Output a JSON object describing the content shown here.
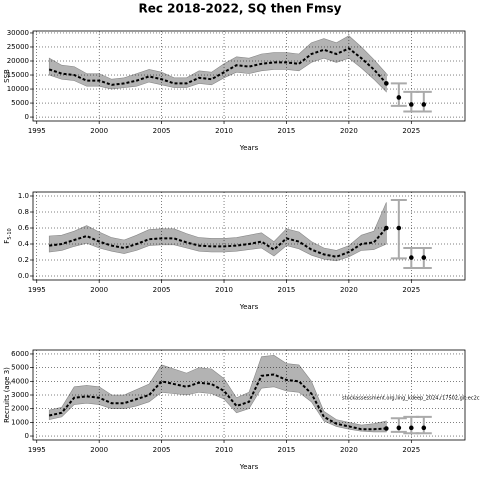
{
  "chart_data": [
    {
      "type": "line",
      "title": "Rec 2018-2022, SQ then Fmsy",
      "ylabel": "SSB",
      "xlabel": "Years",
      "color": "#000000",
      "band_color": "#b3b3b3",
      "grid": true,
      "xlim": [
        1994.7,
        2029.3
      ],
      "xticks": [
        1995,
        2000,
        2005,
        2010,
        2015,
        2020,
        2025
      ],
      "ylim": [
        -1400,
        30700
      ],
      "yticks": [
        0,
        5000,
        10000,
        15000,
        20000,
        25000,
        30000
      ],
      "x": [
        1996,
        1997,
        1998,
        1999,
        2000,
        2001,
        2002,
        2003,
        2004,
        2005,
        2006,
        2007,
        2008,
        2009,
        2010,
        2011,
        2012,
        2013,
        2014,
        2015,
        2016,
        2017,
        2018,
        2019,
        2020,
        2021,
        2022,
        2023
      ],
      "values": [
        17000,
        15500,
        15000,
        13000,
        13000,
        11500,
        12000,
        13000,
        14500,
        13500,
        12000,
        12000,
        14000,
        13500,
        16000,
        18500,
        18000,
        19000,
        19500,
        19500,
        19000,
        22500,
        24000,
        22500,
        24500,
        21000,
        17000,
        12000
      ],
      "lower": [
        15000,
        13500,
        13000,
        11000,
        11000,
        10000,
        10500,
        11000,
        12500,
        11500,
        10500,
        10500,
        12000,
        11500,
        14000,
        16000,
        15500,
        16500,
        17000,
        17000,
        16500,
        19500,
        21000,
        19500,
        21000,
        17500,
        13500,
        9000
      ],
      "upper": [
        21000,
        18500,
        18000,
        15500,
        15500,
        13500,
        14000,
        15500,
        17000,
        16000,
        14000,
        14000,
        16500,
        16000,
        19000,
        21500,
        21000,
        22500,
        23000,
        23000,
        22500,
        26500,
        28000,
        26500,
        29000,
        25000,
        20500,
        15500
      ],
      "proj_x": [
        2023,
        2024,
        2025,
        2026
      ],
      "proj_values": [
        12000,
        7000,
        4500,
        4500
      ],
      "proj_lower": [
        9000,
        4000,
        2000,
        2000
      ],
      "proj_upper": [
        15500,
        12000,
        9000,
        9000
      ]
    },
    {
      "type": "line",
      "ylabel": "F",
      "ylabel_sub": "5-10",
      "xlabel": "Years",
      "color": "#000000",
      "band_color": "#b3b3b3",
      "grid": true,
      "xlim": [
        1994.7,
        2029.3
      ],
      "xticks": [
        1995,
        2000,
        2005,
        2010,
        2015,
        2020,
        2025
      ],
      "ylim": [
        -0.05,
        1.05
      ],
      "yticks": [
        {
          "value": 0,
          "label": "0.0"
        },
        0.2,
        0.4,
        0.6,
        0.8,
        {
          "value": 1,
          "label": "1.0"
        }
      ],
      "x": [
        1996,
        1997,
        1998,
        1999,
        2000,
        2001,
        2002,
        2003,
        2004,
        2005,
        2006,
        2007,
        2008,
        2009,
        2010,
        2011,
        2012,
        2013,
        2014,
        2015,
        2016,
        2017,
        2018,
        2019,
        2020,
        2021,
        2022,
        2023
      ],
      "values": [
        0.38,
        0.4,
        0.45,
        0.5,
        0.43,
        0.38,
        0.35,
        0.4,
        0.46,
        0.47,
        0.47,
        0.42,
        0.38,
        0.37,
        0.37,
        0.38,
        0.4,
        0.43,
        0.33,
        0.47,
        0.43,
        0.33,
        0.27,
        0.24,
        0.3,
        0.4,
        0.42,
        0.6
      ],
      "lower": [
        0.3,
        0.32,
        0.37,
        0.41,
        0.35,
        0.31,
        0.28,
        0.32,
        0.38,
        0.39,
        0.39,
        0.35,
        0.31,
        0.3,
        0.3,
        0.31,
        0.33,
        0.35,
        0.25,
        0.38,
        0.34,
        0.26,
        0.21,
        0.19,
        0.24,
        0.32,
        0.33,
        0.4
      ],
      "upper": [
        0.5,
        0.51,
        0.56,
        0.63,
        0.55,
        0.48,
        0.45,
        0.51,
        0.58,
        0.59,
        0.59,
        0.53,
        0.48,
        0.47,
        0.47,
        0.48,
        0.51,
        0.54,
        0.43,
        0.59,
        0.55,
        0.43,
        0.35,
        0.32,
        0.38,
        0.51,
        0.56,
        0.92
      ],
      "proj_x": [
        2023,
        2024,
        2025,
        2026
      ],
      "proj_values": [
        0.6,
        0.6,
        0.23,
        0.23
      ],
      "proj_lower": [
        0.4,
        0.22,
        0.1,
        0.1
      ],
      "proj_upper": [
        0.92,
        0.95,
        0.35,
        0.35
      ]
    },
    {
      "type": "line",
      "ylabel": "Recruits (age 3)",
      "xlabel": "Years",
      "color": "#000000",
      "band_color": "#b3b3b3",
      "grid": true,
      "annotation": "stockassessment.org,ling_kdeep_2024,r17502,git:ec2c",
      "xlim": [
        1994.7,
        2029.3
      ],
      "xticks": [
        1995,
        2000,
        2005,
        2010,
        2015,
        2020,
        2025
      ],
      "ylim": [
        -290,
        6290
      ],
      "yticks": [
        0,
        1000,
        2000,
        3000,
        4000,
        5000,
        6000
      ],
      "x": [
        1996,
        1997,
        1998,
        1999,
        2000,
        2001,
        2002,
        2003,
        2004,
        2005,
        2006,
        2007,
        2008,
        2009,
        2010,
        2011,
        2012,
        2013,
        2014,
        2015,
        2016,
        2017,
        2018,
        2019,
        2020,
        2021,
        2022,
        2023
      ],
      "values": [
        1500,
        1700,
        2800,
        2900,
        2800,
        2400,
        2400,
        2700,
        3000,
        4000,
        3800,
        3600,
        3900,
        3800,
        3300,
        2200,
        2500,
        4400,
        4500,
        4100,
        4000,
        3100,
        1400,
        900,
        700,
        500,
        500,
        550
      ],
      "lower": [
        1200,
        1400,
        2300,
        2400,
        2300,
        2000,
        2000,
        2200,
        2500,
        3200,
        3100,
        3000,
        3200,
        3100,
        2700,
        1700,
        2000,
        3500,
        3600,
        3300,
        3200,
        2500,
        1100,
        700,
        500,
        350,
        300,
        300
      ],
      "upper": [
        1900,
        2100,
        3600,
        3700,
        3600,
        3000,
        3000,
        3400,
        3800,
        5200,
        4900,
        4600,
        5000,
        4900,
        4200,
        2800,
        3200,
        5800,
        5900,
        5300,
        5200,
        4000,
        1800,
        1200,
        1000,
        800,
        900,
        1100
      ],
      "proj_x": [
        2023,
        2024,
        2025,
        2026
      ],
      "proj_values": [
        550,
        600,
        600,
        600
      ],
      "proj_lower": [
        300,
        300,
        200,
        200
      ],
      "proj_upper": [
        1100,
        1300,
        1400,
        1400
      ]
    }
  ]
}
